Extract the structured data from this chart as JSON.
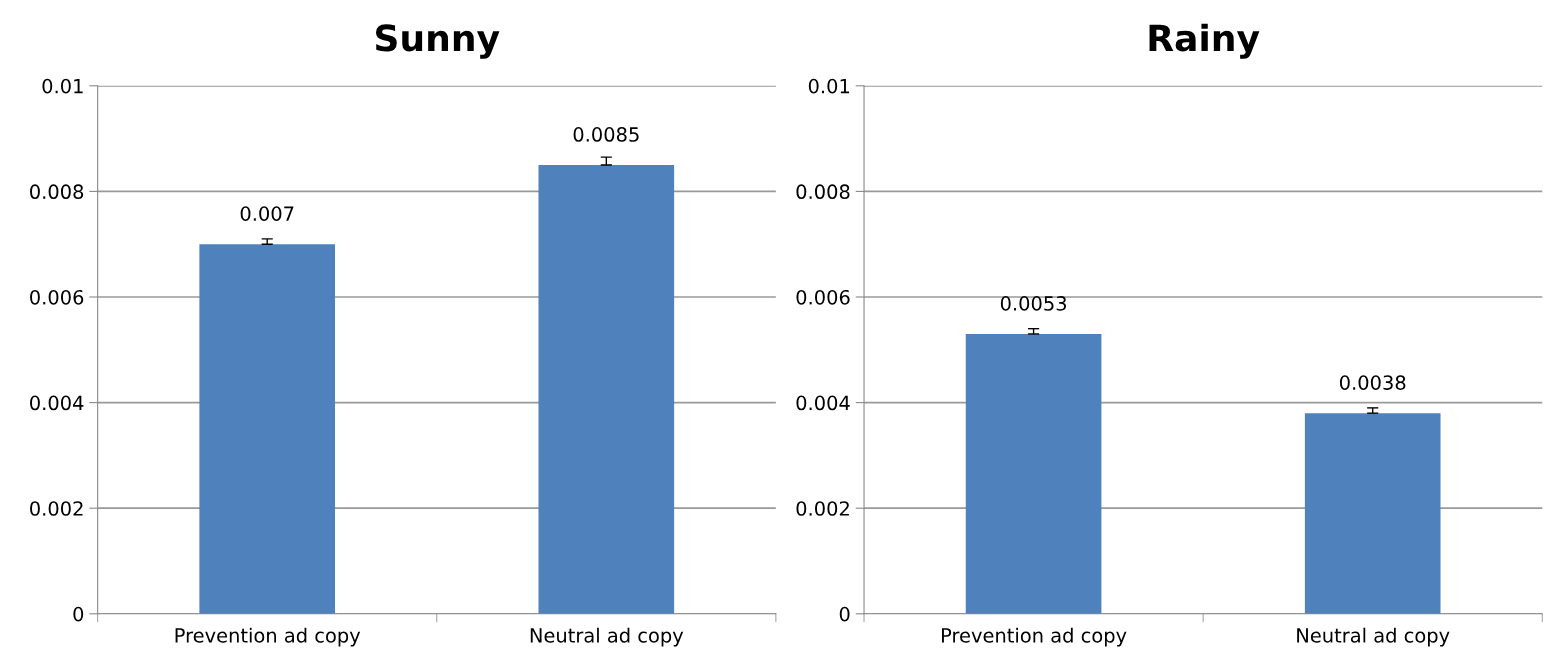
{
  "chart_data": [
    {
      "type": "bar",
      "title": "Sunny",
      "categories": [
        "Prevention ad copy",
        "Neutral ad copy"
      ],
      "values": [
        0.007,
        0.0085
      ],
      "color": "#4f81bd",
      "errors": [
        [
          0.007,
          0.0071
        ],
        [
          0.0085,
          0.00865
        ]
      ],
      "ylim": [
        0,
        0.01
      ],
      "yticks": [
        0,
        0.002,
        0.004,
        0.006,
        0.008,
        0.01
      ],
      "grid": "y",
      "data_labels": true,
      "legend": false
    },
    {
      "type": "bar",
      "title": "Rainy",
      "categories": [
        "Prevention ad copy",
        "Neutral ad copy"
      ],
      "values": [
        0.0053,
        0.0038
      ],
      "color": "#4f81bd",
      "errors": [
        [
          0.0053,
          0.0054
        ],
        [
          0.0038,
          0.0039
        ]
      ],
      "ylim": [
        0,
        0.01
      ],
      "yticks": [
        0,
        0.002,
        0.004,
        0.006,
        0.008,
        0.01
      ],
      "grid": "y",
      "data_labels": true,
      "legend": false
    }
  ]
}
